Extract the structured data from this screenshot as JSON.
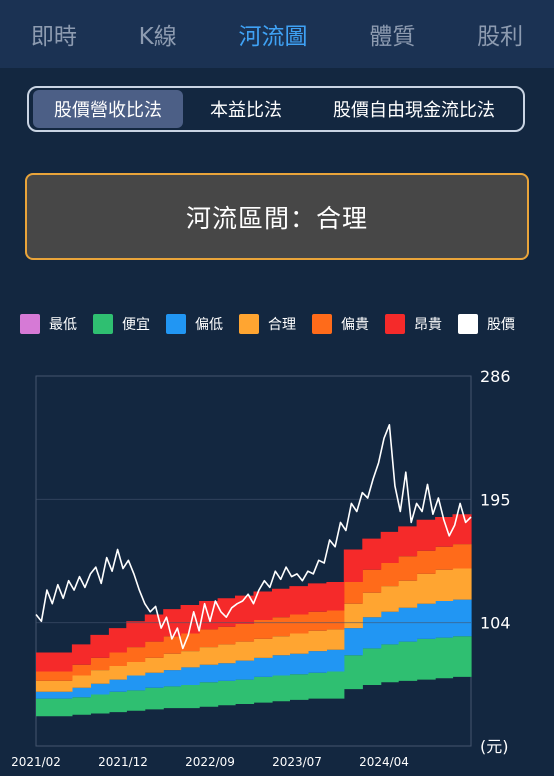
{
  "tabs": [
    {
      "label": "即時",
      "active": false
    },
    {
      "label": "K線",
      "active": false
    },
    {
      "label": "河流圖",
      "active": true
    },
    {
      "label": "體質",
      "active": false
    },
    {
      "label": "股利",
      "active": false
    }
  ],
  "methods": [
    {
      "label": "股價營收比法",
      "active": true
    },
    {
      "label": "本益比法",
      "active": false
    },
    {
      "label": "股價自由現金流比法",
      "active": false
    }
  ],
  "status": {
    "text": "河流區間：合理"
  },
  "legend": [
    {
      "label": "最低",
      "color": "#d67ad6"
    },
    {
      "label": "便宜",
      "color": "#2fbf71"
    },
    {
      "label": "偏低",
      "color": "#2196f3"
    },
    {
      "label": "合理",
      "color": "#ffa531"
    },
    {
      "label": "偏貴",
      "color": "#ff6b1a"
    },
    {
      "label": "昂貴",
      "color": "#f52a2a"
    },
    {
      "label": "股價",
      "color": "#ffffff"
    }
  ],
  "chart_data": {
    "type": "area",
    "x_ticks": [
      "2021/02",
      "2021/12",
      "2022/09",
      "2023/07",
      "2024/04"
    ],
    "y_ticks": [
      104,
      195,
      286
    ],
    "ylim": [
      13,
      286
    ],
    "y_unit": "(元)",
    "grid": true,
    "x_range": [
      2021.0,
      2025.0
    ],
    "bands": [
      {
        "name": "便宜",
        "color": "#2fbf71"
      },
      {
        "name": "偏低",
        "color": "#2196f3"
      },
      {
        "name": "合理",
        "color": "#ffa531"
      },
      {
        "name": "偏貴",
        "color": "#ff6b1a"
      },
      {
        "name": "昂貴",
        "color": "#f52a2a"
      }
    ],
    "band_boundaries": {
      "dates": [
        2021.0,
        2021.17,
        2021.33,
        2021.5,
        2021.67,
        2021.83,
        2022.0,
        2022.17,
        2022.33,
        2022.5,
        2022.67,
        2022.83,
        2023.0,
        2023.17,
        2023.33,
        2023.5,
        2023.67,
        2023.83,
        2024.0,
        2024.17,
        2024.33,
        2024.5,
        2024.67,
        2024.83,
        2025.0
      ],
      "levels": [
        [
          35,
          48,
          53,
          61,
          68,
          82
        ],
        [
          35,
          48,
          53,
          61,
          68,
          82
        ],
        [
          36,
          49,
          56,
          65,
          73,
          88
        ],
        [
          37,
          51,
          59,
          69,
          78,
          95
        ],
        [
          38,
          53,
          62,
          72,
          82,
          100
        ],
        [
          39,
          54,
          65,
          75,
          86,
          105
        ],
        [
          40,
          56,
          67,
          78,
          90,
          110
        ],
        [
          41,
          57,
          69,
          81,
          94,
          114
        ],
        [
          41,
          58,
          71,
          83,
          96,
          117
        ],
        [
          42,
          60,
          73,
          86,
          99,
          120
        ],
        [
          43,
          61,
          74,
          88,
          101,
          122
        ],
        [
          44,
          62,
          76,
          90,
          103,
          124
        ],
        [
          45,
          64,
          78,
          92,
          106,
          127
        ],
        [
          46,
          65,
          80,
          94,
          108,
          129
        ],
        [
          47,
          66,
          81,
          96,
          110,
          131
        ],
        [
          48,
          67,
          83,
          98,
          112,
          133
        ],
        [
          48,
          68,
          84,
          99,
          113,
          134
        ],
        [
          55,
          80,
          100,
          118,
          134,
          158
        ],
        [
          58,
          85,
          108,
          126,
          143,
          166
        ],
        [
          60,
          88,
          112,
          131,
          148,
          171
        ],
        [
          61,
          90,
          115,
          135,
          153,
          175
        ],
        [
          62,
          92,
          118,
          140,
          157,
          180
        ],
        [
          63,
          93,
          120,
          143,
          160,
          182
        ],
        [
          64,
          94,
          121,
          144,
          162,
          184
        ],
        [
          64,
          94,
          121,
          144,
          162,
          184
        ]
      ]
    },
    "price": {
      "name": "股價",
      "color": "#ffffff",
      "dates": [
        2021.0,
        2021.05,
        2021.1,
        2021.15,
        2021.2,
        2021.25,
        2021.3,
        2021.35,
        2021.4,
        2021.45,
        2021.5,
        2021.55,
        2021.6,
        2021.65,
        2021.7,
        2021.75,
        2021.8,
        2021.85,
        2021.9,
        2021.95,
        2022.0,
        2022.05,
        2022.1,
        2022.15,
        2022.2,
        2022.25,
        2022.3,
        2022.35,
        2022.4,
        2022.45,
        2022.5,
        2022.55,
        2022.6,
        2022.65,
        2022.7,
        2022.75,
        2022.8,
        2022.85,
        2022.9,
        2022.95,
        2023.0,
        2023.05,
        2023.1,
        2023.15,
        2023.2,
        2023.25,
        2023.3,
        2023.35,
        2023.4,
        2023.45,
        2023.5,
        2023.55,
        2023.6,
        2023.65,
        2023.7,
        2023.75,
        2023.8,
        2023.85,
        2023.9,
        2023.95,
        2024.0,
        2024.05,
        2024.1,
        2024.15,
        2024.2,
        2024.25,
        2024.3,
        2024.35,
        2024.4,
        2024.45,
        2024.5,
        2024.55,
        2024.6,
        2024.65,
        2024.7,
        2024.75,
        2024.8,
        2024.85,
        2024.9,
        2024.95,
        2025.0
      ],
      "values": [
        110,
        105,
        128,
        118,
        132,
        122,
        135,
        128,
        138,
        130,
        140,
        145,
        133,
        152,
        142,
        158,
        144,
        150,
        140,
        128,
        118,
        112,
        116,
        100,
        108,
        92,
        100,
        85,
        95,
        112,
        98,
        118,
        105,
        120,
        112,
        108,
        115,
        118,
        120,
        125,
        118,
        128,
        135,
        130,
        142,
        136,
        145,
        138,
        140,
        135,
        142,
        140,
        150,
        148,
        165,
        160,
        178,
        172,
        192,
        186,
        200,
        196,
        210,
        222,
        240,
        250,
        205,
        186,
        215,
        178,
        192,
        186,
        206,
        184,
        196,
        180,
        168,
        176,
        192,
        178,
        182
      ]
    }
  }
}
